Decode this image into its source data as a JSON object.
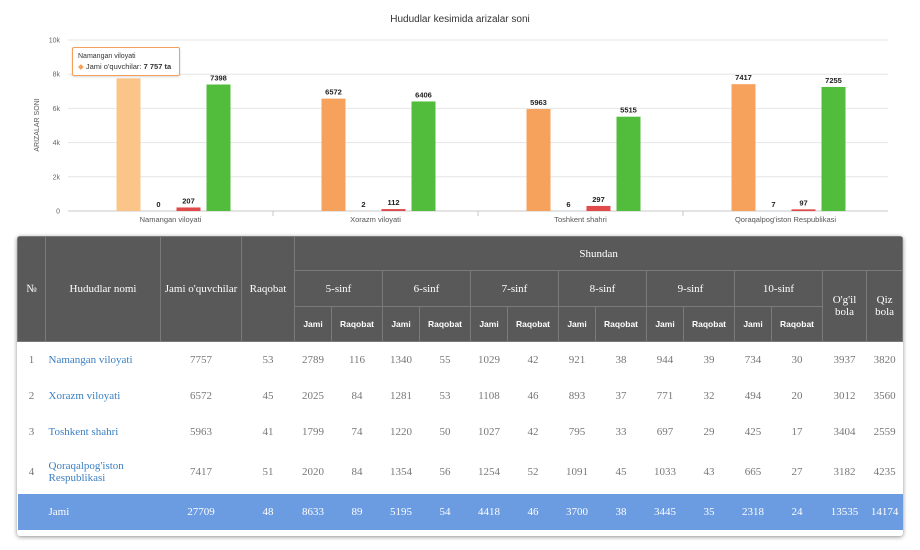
{
  "chart_data": {
    "type": "bar",
    "title": "Hududlar kesimida arizalar soni",
    "ylabel": "ARIZALAR SONI",
    "xlabel": "",
    "ylim": [
      0,
      10000
    ],
    "yticks": [
      {
        "value": 0,
        "label": "0"
      },
      {
        "value": 2000,
        "label": "2k"
      },
      {
        "value": 4000,
        "label": "4k"
      },
      {
        "value": 6000,
        "label": "6k"
      },
      {
        "value": 8000,
        "label": "8k"
      },
      {
        "value": 10000,
        "label": "10k"
      }
    ],
    "grid": true,
    "categories": [
      "Namangan viloyati",
      "Xorazm viloyati",
      "Toshkent shahri",
      "Qoraqalpog'iston Respublikasi"
    ],
    "series": [
      {
        "color": "#f7a25c",
        "values": [
          7757,
          6572,
          5963,
          7417
        ],
        "labels": [
          "",
          "6572",
          "5963",
          "7417"
        ]
      },
      {
        "color": "#9ecbf1",
        "values": [
          0,
          2,
          6,
          7
        ],
        "labels": [
          "0",
          "2",
          "6",
          "7"
        ]
      },
      {
        "color": "#e04a4a",
        "values": [
          207,
          112,
          297,
          97
        ],
        "labels": [
          "207",
          "112",
          "297",
          "97"
        ]
      },
      {
        "color": "#52bd3c",
        "values": [
          7398,
          6406,
          5515,
          7255
        ],
        "labels": [
          "7398",
          "6406",
          "5515",
          "7255"
        ]
      }
    ],
    "highlight_color": "#fbc589",
    "tooltip": {
      "title": "Namangan viloyati",
      "series_label": "Jami o'quvchilar:",
      "value": "7 757 ta"
    }
  },
  "table": {
    "headers": {
      "no": "№",
      "name": "Hududlar nomi",
      "total": "Jami o'quvchilar",
      "competition": "Raqobat",
      "shundan": "Shundan",
      "grades": [
        "5-sinf",
        "6-sinf",
        "7-sinf",
        "8-sinf",
        "9-sinf",
        "10-sinf"
      ],
      "jami": "Jami",
      "raqobat": "Raqobat",
      "boys": "O'g'il bola",
      "girls": "Qiz bola"
    },
    "rows": [
      {
        "no": "1",
        "name": "Namangan viloyati",
        "cells": [
          "7757",
          "53",
          "2789",
          "116",
          "1340",
          "55",
          "1029",
          "42",
          "921",
          "38",
          "944",
          "39",
          "734",
          "30",
          "3937",
          "3820"
        ]
      },
      {
        "no": "2",
        "name": "Xorazm viloyati",
        "cells": [
          "6572",
          "45",
          "2025",
          "84",
          "1281",
          "53",
          "1108",
          "46",
          "893",
          "37",
          "771",
          "32",
          "494",
          "20",
          "3012",
          "3560"
        ]
      },
      {
        "no": "3",
        "name": "Toshkent shahri",
        "cells": [
          "5963",
          "41",
          "1799",
          "74",
          "1220",
          "50",
          "1027",
          "42",
          "795",
          "33",
          "697",
          "29",
          "425",
          "17",
          "3404",
          "2559"
        ]
      },
      {
        "no": "4",
        "name": "Qoraqalpog'iston Respublikasi",
        "cells": [
          "7417",
          "51",
          "2020",
          "84",
          "1354",
          "56",
          "1254",
          "52",
          "1091",
          "45",
          "1033",
          "43",
          "665",
          "27",
          "3182",
          "4235"
        ]
      }
    ],
    "total_row": {
      "name": "Jami",
      "cells": [
        "27709",
        "48",
        "8633",
        "89",
        "5195",
        "54",
        "4418",
        "46",
        "3700",
        "38",
        "3445",
        "35",
        "2318",
        "24",
        "13535",
        "14174"
      ]
    }
  }
}
